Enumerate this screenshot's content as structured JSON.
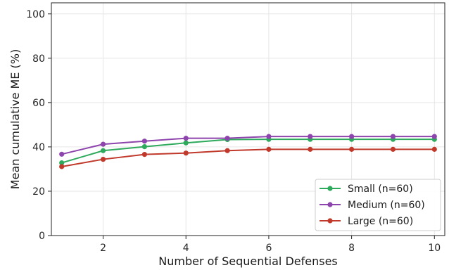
{
  "chart_data": {
    "type": "line",
    "title": "",
    "xlabel": "Number of Sequential Defenses",
    "ylabel": "Mean cumulative ME (%)",
    "x": [
      1,
      2,
      3,
      4,
      5,
      6,
      7,
      8,
      9,
      10
    ],
    "xlim": [
      0.75,
      10.25
    ],
    "ylim": [
      0,
      105
    ],
    "xticks": [
      2,
      4,
      6,
      8,
      10
    ],
    "yticks": [
      0,
      20,
      40,
      60,
      80,
      100
    ],
    "xtick_labels": [
      "2",
      "4",
      "6",
      "8",
      "10"
    ],
    "ytick_labels": [
      "0",
      "20",
      "40",
      "60",
      "80",
      "100"
    ],
    "grid": true,
    "legend_position": "lower-right",
    "series": [
      {
        "name": "Small (n=60)",
        "color": "#2eaa5c",
        "values": [
          32.8,
          38.3,
          40.1,
          41.8,
          43.3,
          43.4,
          43.4,
          43.4,
          43.4,
          43.4
        ]
      },
      {
        "name": "Medium (n=60)",
        "color": "#8e44ad",
        "values": [
          36.7,
          41.2,
          42.6,
          43.9,
          43.9,
          44.7,
          44.7,
          44.7,
          44.7,
          44.7
        ]
      },
      {
        "name": "Large (n=60)",
        "color": "#c0392b",
        "values": [
          31.1,
          34.4,
          36.6,
          37.2,
          38.3,
          38.9,
          38.9,
          38.9,
          38.9,
          38.9
        ]
      }
    ]
  }
}
